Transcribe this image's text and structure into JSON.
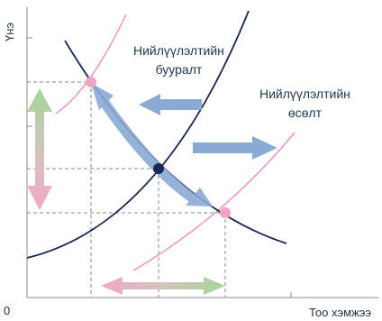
{
  "axes": {
    "y_label": "Үнэ",
    "x_label": "Тоо хэмжээ",
    "origin_label": "0"
  },
  "annotations": {
    "supply_decrease": {
      "line1": "Нийлүүлэлтийн",
      "line2": "бууралт"
    },
    "supply_increase": {
      "line1": "Нийлүүлэлтийн",
      "line2": "өсөлт"
    }
  },
  "colors": {
    "curve_dark": "#1b2750",
    "curve_pink": "#ef8fb3",
    "point_pink": "#f2a3c2",
    "arrow_blue": "#8aaad4",
    "arrow_green": "#a6d49a",
    "arrow_pink": "#f4a6c6",
    "grid_dash": "#8a8a8a",
    "axis": "#8c8c8c"
  },
  "icons": {
    "shift_left": "arrow-left-icon",
    "shift_right": "arrow-right-icon",
    "price_range": "double-arrow-vertical-icon",
    "quantity_range": "double-arrow-horizontal-icon"
  }
}
